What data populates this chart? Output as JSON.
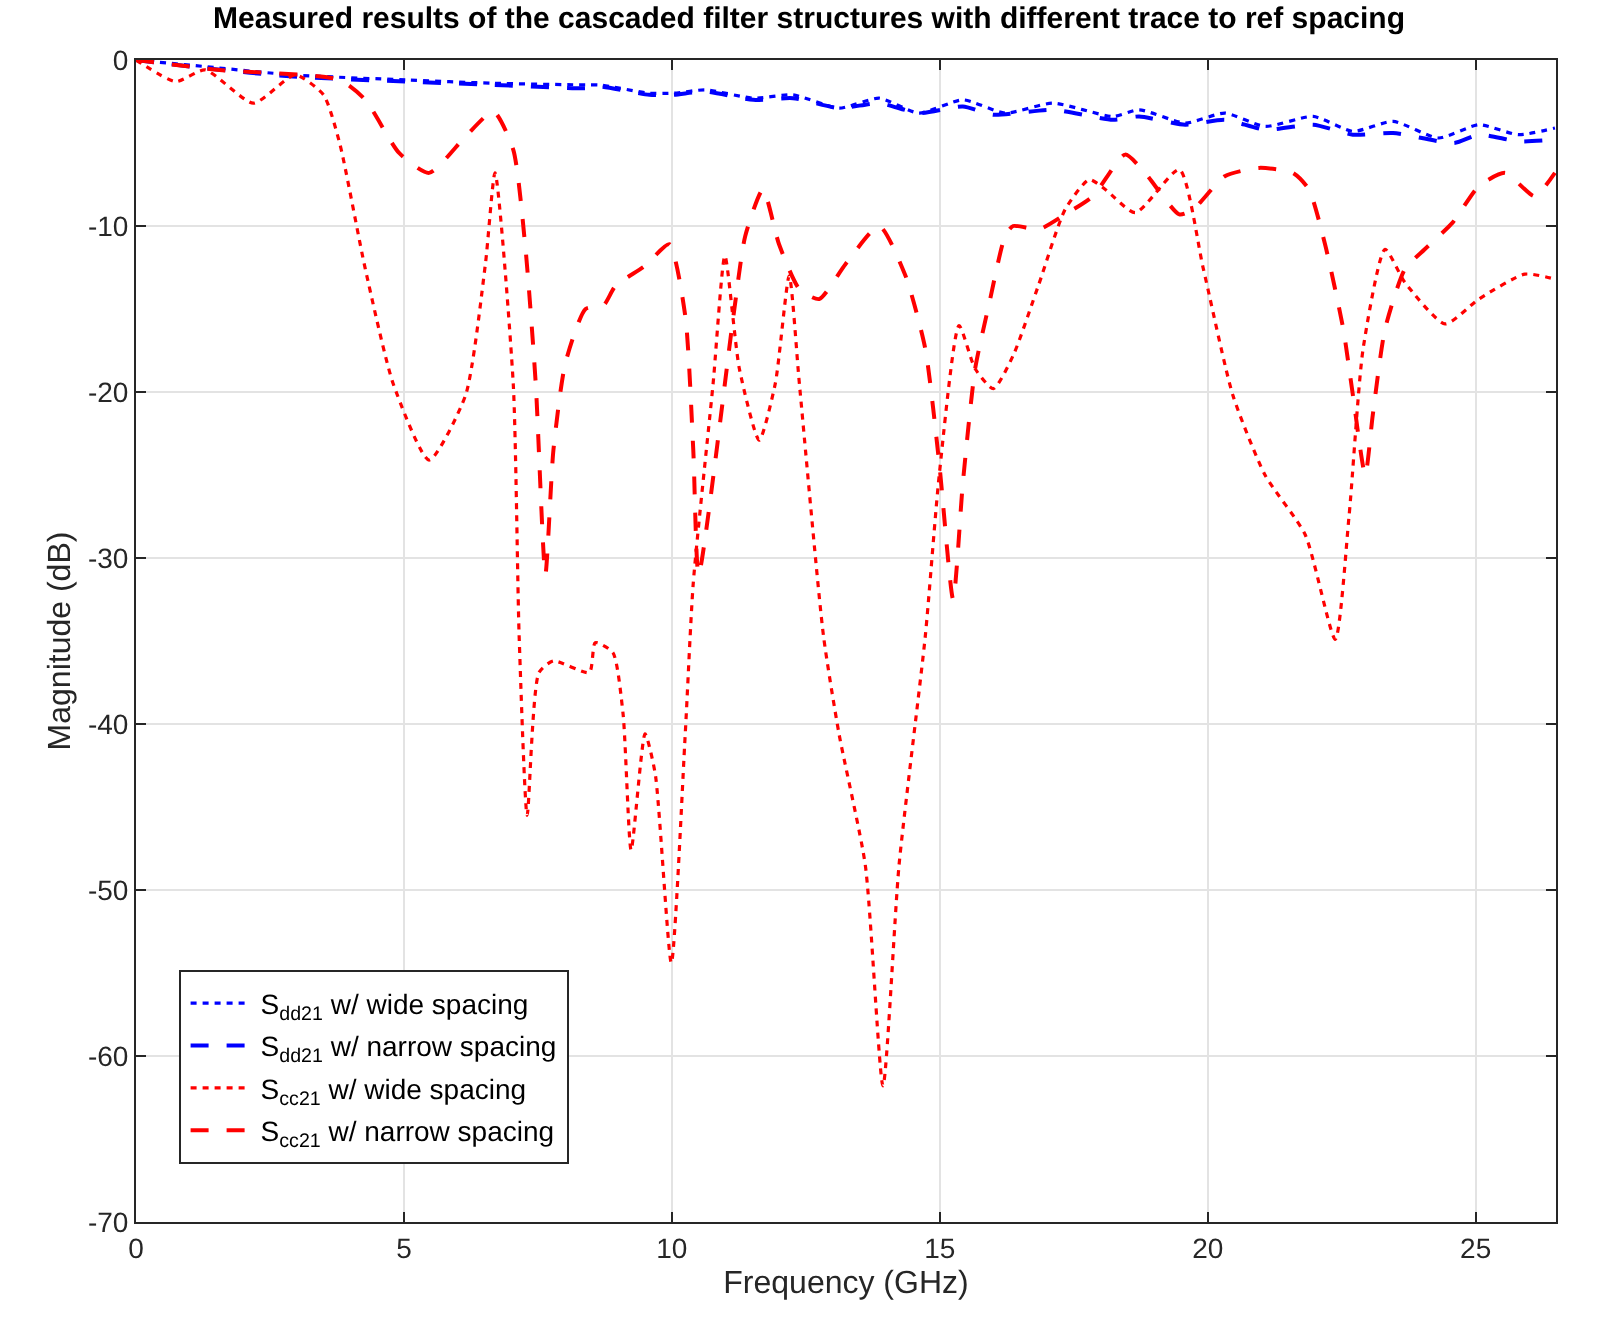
{
  "chart_data": {
    "type": "line",
    "title": "Measured results of the cascaded filter structures with different trace to ref spacing",
    "xlabel": "Frequency (GHz)",
    "ylabel": "Magnitude (dB)",
    "xlim": [
      0,
      26.5
    ],
    "ylim": [
      -70,
      0
    ],
    "xticks": [
      0,
      5,
      10,
      15,
      20,
      25
    ],
    "yticks": [
      -70,
      -60,
      -50,
      -40,
      -30,
      -20,
      -10,
      0
    ],
    "grid": true,
    "legend": "bottom left",
    "marker": "none",
    "series": [
      {
        "name": "S$_{dd21}$ w/ wide spacing",
        "color": "#0000ff",
        "line_style": "dotted",
        "x": [
          0,
          1.3,
          2.93,
          5.03,
          6.67,
          8.39,
          8.65,
          9.58,
          10.03,
          10.63,
          11.52,
          12.26,
          13.12,
          13.87,
          14.61,
          15.43,
          16.22,
          17.11,
          18.23,
          18.72,
          19.58,
          20.32,
          21.07,
          21.97,
          22.71,
          23.46,
          24.31,
          25.06,
          25.8,
          26.48
        ],
        "values": [
          0,
          -0.4,
          -0.9,
          -1.2,
          -1.4,
          -1.5,
          -1.5,
          -2.0,
          -2.0,
          -1.8,
          -2.3,
          -2.1,
          -2.9,
          -2.3,
          -3.2,
          -2.4,
          -3.2,
          -2.6,
          -3.4,
          -3.0,
          -3.8,
          -3.2,
          -4.0,
          -3.4,
          -4.3,
          -3.7,
          -4.7,
          -3.9,
          -4.5,
          -4.1
        ]
      },
      {
        "name": "S$_{dd21}$ w/ narrow spacing",
        "color": "#0000ff",
        "line_style": "dashed",
        "x": [
          0,
          1.3,
          2.93,
          5.03,
          6.67,
          8.39,
          8.65,
          9.58,
          10.03,
          10.63,
          11.52,
          12.26,
          13.12,
          13.87,
          14.61,
          15.43,
          16.0,
          17.11,
          18.23,
          18.72,
          19.58,
          20.32,
          21.07,
          21.97,
          22.71,
          23.46,
          24.6,
          25.06,
          25.8,
          26.48
        ],
        "values": [
          0,
          -0.5,
          -1.0,
          -1.3,
          -1.5,
          -1.7,
          -1.6,
          -2.1,
          -2.1,
          -1.9,
          -2.4,
          -2.3,
          -2.9,
          -2.6,
          -3.2,
          -2.8,
          -3.3,
          -3.0,
          -3.6,
          -3.4,
          -3.9,
          -3.6,
          -4.2,
          -3.9,
          -4.5,
          -4.4,
          -5.0,
          -4.5,
          -4.9,
          -4.8
        ]
      },
      {
        "name": "S$_{cc21}$ w/ wide spacing",
        "color": "#ff0000",
        "line_style": "dotted",
        "x": [
          0,
          0.74,
          1.29,
          2.19,
          2.97,
          3.5,
          3.8,
          4.28,
          4.8,
          5.47,
          6.15,
          6.52,
          6.7,
          7.04,
          7.15,
          7.3,
          7.52,
          7.79,
          8.46,
          8.57,
          8.9,
          9.09,
          9.24,
          9.5,
          9.69,
          9.99,
          10.25,
          10.4,
          10.77,
          10.99,
          11.26,
          11.63,
          11.93,
          12.19,
          12.38,
          12.83,
          13.12,
          13.61,
          13.94,
          14.24,
          14.73,
          14.99,
          15.36,
          15.66,
          16.0,
          16.37,
          16.85,
          17.34,
          17.79,
          18.09,
          18.65,
          19.47,
          19.92,
          20.47,
          21.07,
          21.82,
          22.38,
          22.64,
          22.9,
          23.31,
          23.68,
          24.43,
          25.06,
          25.92,
          26.48
        ],
        "values": [
          0,
          -1.3,
          -0.6,
          -2.6,
          -0.9,
          -2.1,
          -5.0,
          -12.6,
          -19.5,
          -24.1,
          -20.2,
          -12.3,
          -6.8,
          -19.5,
          -34.7,
          -45.5,
          -36.9,
          -36.2,
          -36.9,
          -35.1,
          -35.7,
          -39.4,
          -47.6,
          -40.6,
          -43,
          -54.4,
          -40.6,
          -31.5,
          -19.5,
          -11.8,
          -18.6,
          -22.9,
          -19.5,
          -13,
          -19.5,
          -34.7,
          -40.6,
          -48.5,
          -61.8,
          -48.5,
          -34.7,
          -25,
          -16,
          -18.6,
          -19.8,
          -17.8,
          -13.5,
          -9,
          -7.2,
          -7.8,
          -9.2,
          -6.6,
          -12.6,
          -20.2,
          -25,
          -28.6,
          -34.9,
          -27.4,
          -17.4,
          -11.4,
          -13.4,
          -15.9,
          -14.4,
          -12.9,
          -13.2
        ]
      },
      {
        "name": "S$_{cc21}$ w/ narrow spacing",
        "color": "#ff0000",
        "line_style": "dashed",
        "x": [
          0,
          1.56,
          3.8,
          4.28,
          4.91,
          5.47,
          6.15,
          6.67,
          7.04,
          7.27,
          7.46,
          7.64,
          7.79,
          8.01,
          8.39,
          8.72,
          8.95,
          9.5,
          9.95,
          10.25,
          10.4,
          10.5,
          11.15,
          11.37,
          11.7,
          12.0,
          12.38,
          12.75,
          13.24,
          13.87,
          14.36,
          14.73,
          14.99,
          15.25,
          15.43,
          15.66,
          15.92,
          16.22,
          16.37,
          16.85,
          17.34,
          17.86,
          18.46,
          18.83,
          19.47,
          19.73,
          20.32,
          20.96,
          21.59,
          21.89,
          22.19,
          22.53,
          22.71,
          22.94,
          23.08,
          23.31,
          23.68,
          24.05,
          24.57,
          25.06,
          25.55,
          26.1,
          26.48
        ],
        "values": [
          0,
          -0.6,
          -1.2,
          -2.4,
          -5.6,
          -6.8,
          -4.6,
          -3.1,
          -5.4,
          -11.4,
          -19.5,
          -31,
          -23.5,
          -18.3,
          -15,
          -14.8,
          -13.6,
          -12.4,
          -11.1,
          -15.4,
          -23.5,
          -31,
          -15.4,
          -10.6,
          -7.8,
          -11.1,
          -13.8,
          -14.4,
          -12.3,
          -10,
          -13,
          -17.4,
          -24.3,
          -32.5,
          -25.5,
          -18.6,
          -14.7,
          -10.6,
          -10,
          -10.2,
          -9.3,
          -8.2,
          -5.7,
          -6.8,
          -9.3,
          -9,
          -7,
          -6.5,
          -6.8,
          -7.8,
          -11.1,
          -16.2,
          -20.2,
          -25,
          -21.4,
          -16.2,
          -12.6,
          -11.4,
          -9.8,
          -7.6,
          -6.8,
          -8.2,
          -6.8
        ]
      }
    ]
  }
}
